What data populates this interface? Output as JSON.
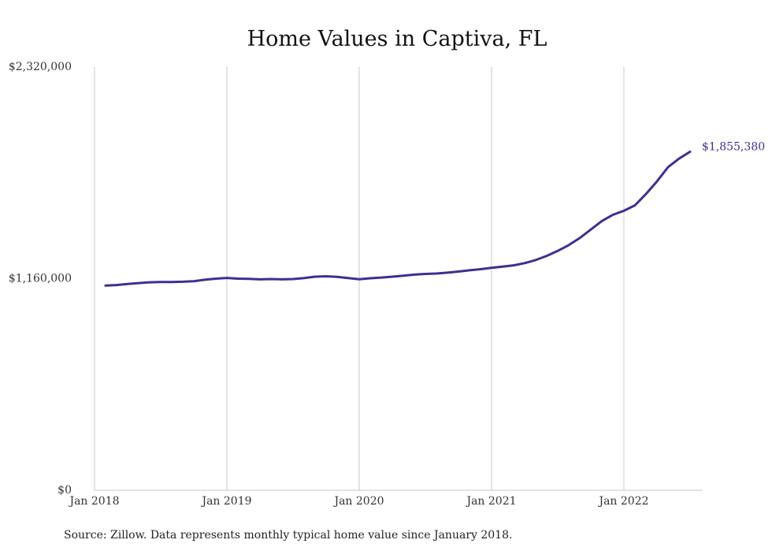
{
  "chart_data": {
    "type": "line",
    "title": "Home Values in Captiva, FL",
    "xlabel": "",
    "ylabel": "",
    "ylim": [
      0,
      2320000
    ],
    "xlim": [
      "2018-01",
      "2022-08"
    ],
    "y_ticks": [
      {
        "value": 0,
        "label": "$0"
      },
      {
        "value": 1160000,
        "label": "$1,160,000"
      },
      {
        "value": 2320000,
        "label": "$2,320,000"
      }
    ],
    "x_ticks": [
      {
        "x": "2018-01",
        "label": "Jan 2018"
      },
      {
        "x": "2019-01",
        "label": "Jan 2019"
      },
      {
        "x": "2020-01",
        "label": "Jan 2020"
      },
      {
        "x": "2021-01",
        "label": "Jan 2021"
      },
      {
        "x": "2022-01",
        "label": "Jan 2022"
      }
    ],
    "grid": "vertical",
    "line_color": "#3b3190",
    "end_label": "$1,855,380",
    "series": [
      {
        "x": [
          "2018-02",
          "2018-03",
          "2018-04",
          "2018-05",
          "2018-06",
          "2018-07",
          "2018-08",
          "2018-09",
          "2018-10",
          "2018-11",
          "2018-12",
          "2019-01",
          "2019-02",
          "2019-03",
          "2019-04",
          "2019-05",
          "2019-06",
          "2019-07",
          "2019-08",
          "2019-09",
          "2019-10",
          "2019-11",
          "2019-12",
          "2020-01",
          "2020-02",
          "2020-03",
          "2020-04",
          "2020-05",
          "2020-06",
          "2020-07",
          "2020-08",
          "2020-09",
          "2020-10",
          "2020-11",
          "2020-12",
          "2021-01",
          "2021-02",
          "2021-03",
          "2021-04",
          "2021-05",
          "2021-06",
          "2021-07",
          "2021-08",
          "2021-09",
          "2021-10",
          "2021-11",
          "2021-12",
          "2022-01",
          "2022-02",
          "2022-03",
          "2022-04",
          "2022-05",
          "2022-06",
          "2022-07"
        ],
        "values": [
          1122000,
          1125000,
          1131000,
          1136000,
          1140000,
          1142000,
          1142000,
          1143000,
          1146000,
          1154000,
          1160000,
          1164000,
          1160000,
          1159000,
          1156000,
          1158000,
          1156000,
          1158000,
          1163000,
          1171000,
          1173000,
          1170000,
          1163000,
          1157000,
          1162000,
          1166000,
          1171000,
          1176000,
          1182000,
          1186000,
          1188000,
          1193000,
          1199000,
          1206000,
          1212000,
          1219000,
          1226000,
          1233000,
          1245000,
          1262000,
          1285000,
          1312000,
          1344000,
          1383000,
          1429000,
          1476000,
          1510000,
          1532000,
          1562000,
          1624000,
          1693000,
          1771000,
          1818000,
          1855380
        ]
      }
    ]
  },
  "source": "Source: Zillow. Data represents monthly typical home value since January 2018."
}
